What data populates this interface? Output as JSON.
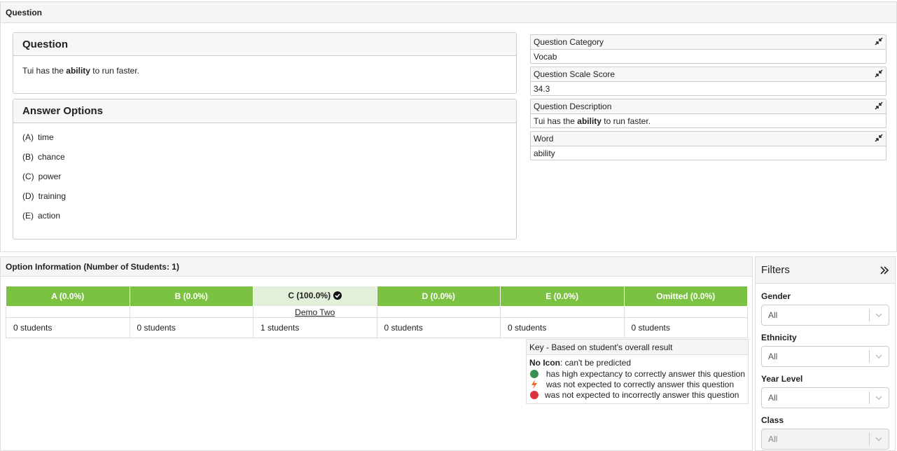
{
  "header": {
    "title": "Question"
  },
  "question": {
    "title": "Question",
    "text": [
      "Tui has the ",
      "ability",
      " to run faster."
    ]
  },
  "answers": {
    "title": "Answer Options",
    "options": [
      {
        "letter": "(A)",
        "text": "time"
      },
      {
        "letter": "(B)",
        "text": "chance"
      },
      {
        "letter": "(C)",
        "text": "power"
      },
      {
        "letter": "(D)",
        "text": "training"
      },
      {
        "letter": "(E)",
        "text": "action"
      }
    ]
  },
  "fields": [
    {
      "label": "Question Category",
      "value": [
        "Vocab"
      ]
    },
    {
      "label": "Question Scale Score",
      "value": [
        "34.3"
      ]
    },
    {
      "label": "Question Description",
      "value": [
        "Tui has the ",
        "ability",
        " to run faster."
      ]
    },
    {
      "label": "Word",
      "value": [
        "ability"
      ]
    }
  ],
  "option_info": {
    "title": "Option Information (Number of Students: 1)",
    "columns": [
      {
        "header": "A (0.0%)",
        "students": [],
        "count": "0 students"
      },
      {
        "header": "B (0.0%)",
        "students": [],
        "count": "0 students"
      },
      {
        "header": "C (100.0%)",
        "correct": true,
        "students": [
          "Demo Two"
        ],
        "count": "1 students"
      },
      {
        "header": "D (0.0%)",
        "students": [],
        "count": "0 students"
      },
      {
        "header": "E (0.0%)",
        "students": [],
        "count": "0 students"
      },
      {
        "header": "Omitted (0.0%)",
        "students": [],
        "count": "0 students"
      }
    ]
  },
  "key": {
    "title": "Key - Based on student's overall result",
    "no_icon": "No Icon",
    "no_icon_text": ": can't be predicted",
    "items": [
      "has high expectancy to correctly answer this question",
      "was not expected to correctly answer this question",
      "was not expected to incorrectly answer this question"
    ]
  },
  "filters": {
    "title": "Filters",
    "groups": [
      {
        "label": "Gender",
        "value": "All"
      },
      {
        "label": "Ethnicity",
        "value": "All"
      },
      {
        "label": "Year Level",
        "value": "All"
      },
      {
        "label": "Class",
        "value": "All",
        "disabled": true
      }
    ]
  }
}
